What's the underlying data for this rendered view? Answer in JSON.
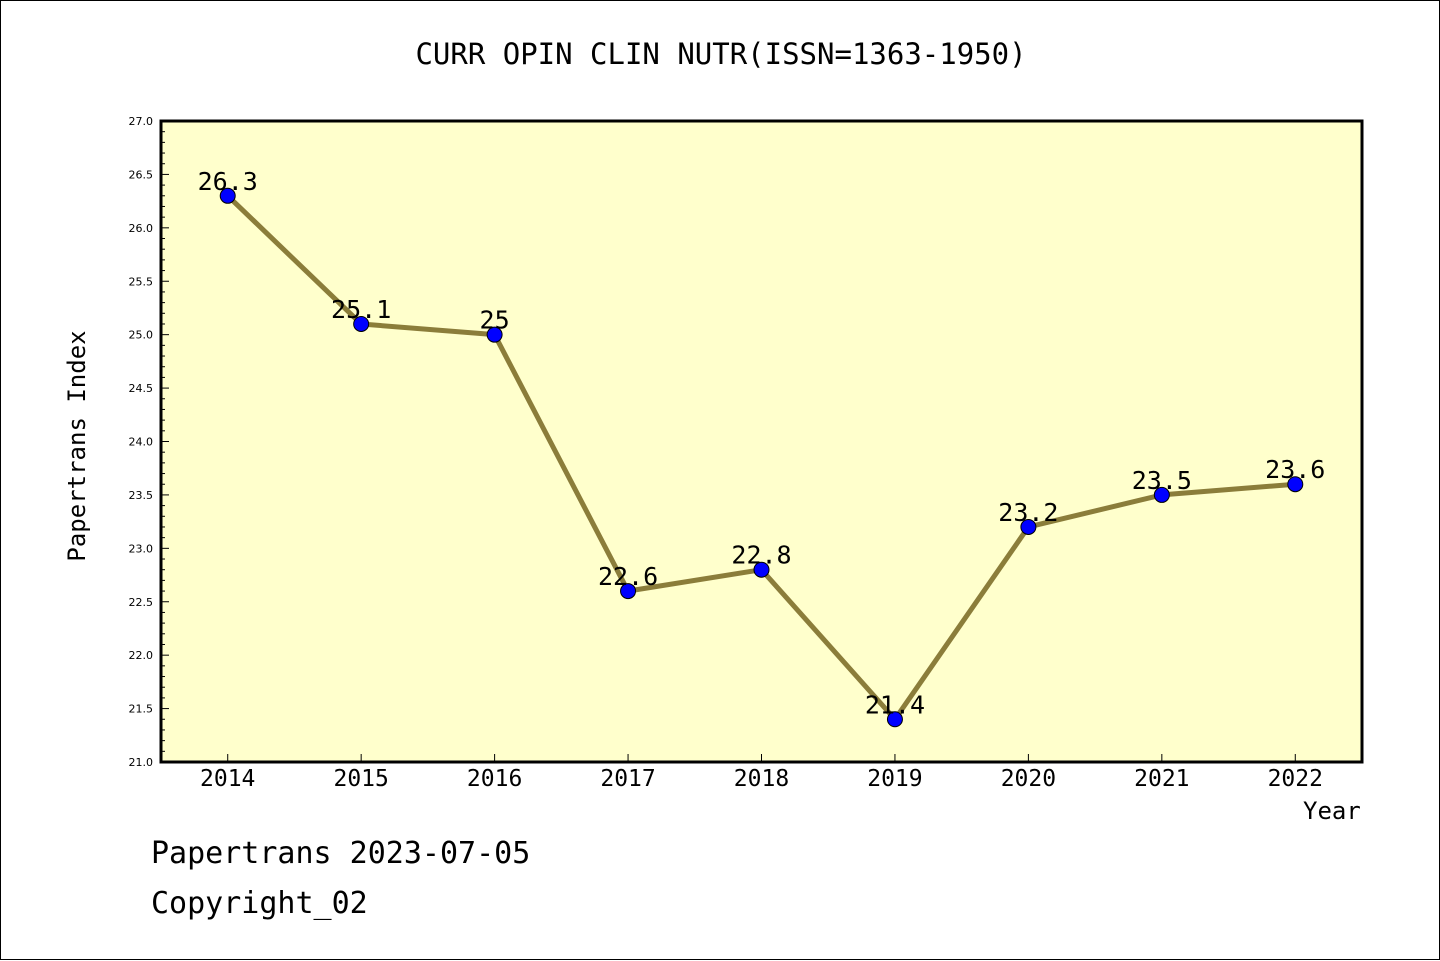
{
  "chart_data": {
    "type": "line",
    "title": "CURR OPIN CLIN NUTR(ISSN=1363-1950)",
    "xlabel": "Year",
    "ylabel": "Papertrans Index",
    "categories": [
      "2014",
      "2015",
      "2016",
      "2017",
      "2018",
      "2019",
      "2020",
      "2021",
      "2022"
    ],
    "values": [
      26.3,
      25.1,
      25,
      22.6,
      22.8,
      21.4,
      23.2,
      23.5,
      23.6
    ],
    "data_labels": [
      "26.3",
      "25.1",
      "25",
      "22.6",
      "22.8",
      "21.4",
      "23.2",
      "23.5",
      "23.6"
    ],
    "ylim": [
      21.0,
      27.0
    ],
    "y_ticks": [
      "21.0",
      "21.5",
      "22.0",
      "22.5",
      "23.0",
      "23.5",
      "24.0",
      "24.5",
      "25.0",
      "25.5",
      "26.0",
      "26.5",
      "27.0"
    ],
    "grid": false,
    "legend": "none",
    "colors": {
      "plot_background": "#ffffcc",
      "line": "#8b7d3a",
      "marker": "#0000ff"
    }
  },
  "footer": {
    "date": "Papertrans 2023-07-05",
    "copyright": "Copyright_02"
  }
}
